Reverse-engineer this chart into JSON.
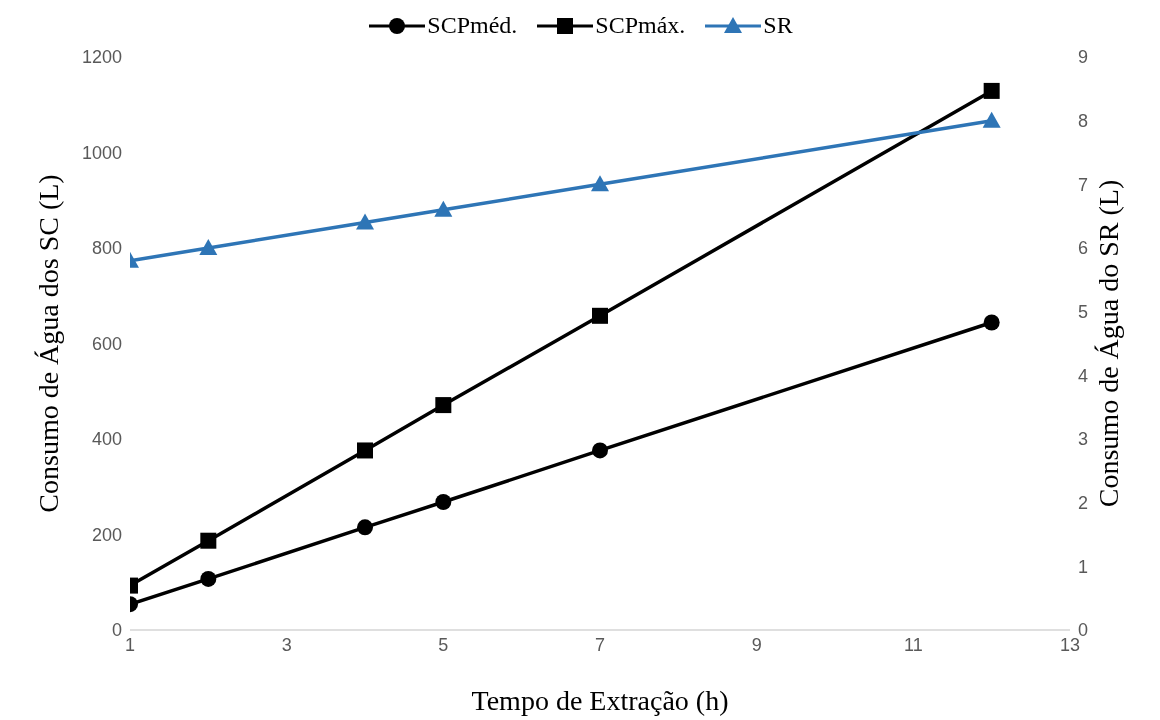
{
  "chart_data": {
    "type": "line",
    "xlabel": "Tempo de Extração (h)",
    "ylabel": "Consumo de Água dos SC (L)",
    "y2label": "Consumo de Água do SR (L)",
    "x": [
      1,
      2,
      4,
      5,
      7,
      12
    ],
    "series": [
      {
        "name": "SCPméd.",
        "color": "#000000",
        "marker": "circle",
        "values": [
          54,
          107,
          215,
          268,
          376,
          644
        ]
      },
      {
        "name": "SCPmáx.",
        "color": "#000000",
        "marker": "square",
        "values": [
          93,
          187,
          376,
          471,
          658,
          1129
        ]
      },
      {
        "name": "SR",
        "color": "#2e75b6",
        "marker": "triangle",
        "axis": "y2",
        "values": [
          5.8,
          6.0,
          6.4,
          6.6,
          7.0,
          8.0
        ]
      }
    ],
    "xlim": [
      1,
      13
    ],
    "xticks": [
      1,
      3,
      5,
      7,
      9,
      11,
      13
    ],
    "ylim": [
      0,
      1200
    ],
    "yticks": [
      0,
      200,
      400,
      600,
      800,
      1000,
      1200
    ],
    "y2lim": [
      0,
      9
    ],
    "y2ticks": [
      0,
      1,
      2,
      3,
      4,
      5,
      6,
      7,
      8,
      9
    ],
    "grid": false,
    "legend": "top",
    "line_style": "solid"
  }
}
